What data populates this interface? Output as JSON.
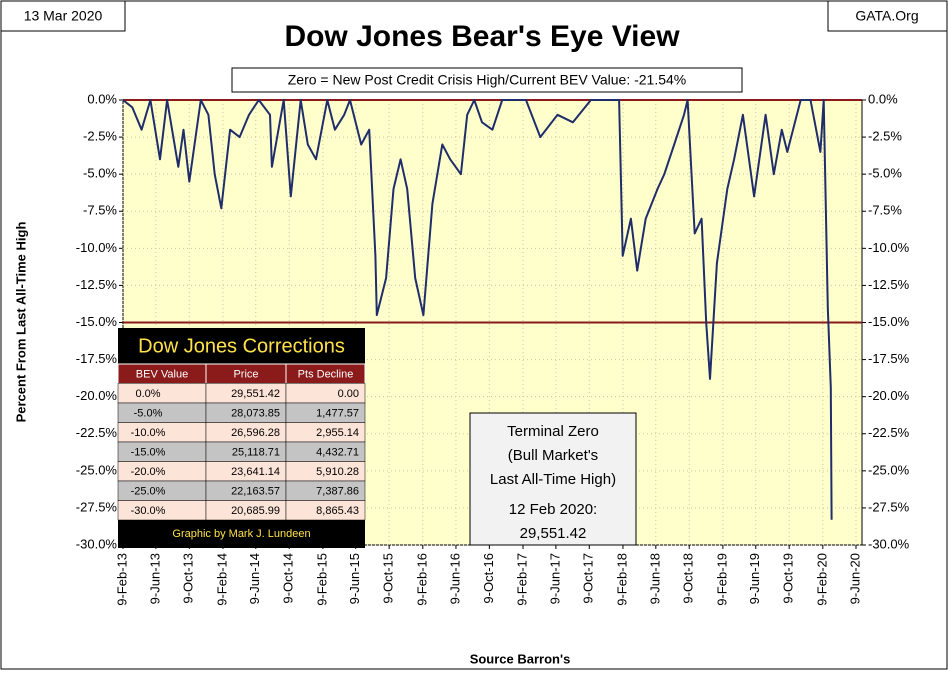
{
  "chart_data": {
    "type": "line",
    "title": "Dow Jones Bear's Eye View",
    "subtitle": "Zero = New Post Credit Crisis High/Current BEV Value:  -21.54%",
    "date_label": "13 Mar 2020",
    "source_site": "GATA.Org",
    "y_label": "Percent From Last All-Time High",
    "x_label": "Source Barron's",
    "x": [
      "2013-02-09",
      "2013-03-15",
      "2013-04-18",
      "2013-05-20",
      "2013-06-24",
      "2013-07-20",
      "2013-08-30",
      "2013-09-18",
      "2013-10-09",
      "2013-11-20",
      "2013-12-18",
      "2014-01-10",
      "2014-02-03",
      "2014-03-07",
      "2014-04-11",
      "2014-05-15",
      "2014-06-20",
      "2014-07-31",
      "2014-08-07",
      "2014-09-19",
      "2014-10-15",
      "2014-11-20",
      "2014-12-16",
      "2015-01-15",
      "2015-02-25",
      "2015-03-25",
      "2015-04-28",
      "2015-05-19",
      "2015-06-29",
      "2015-07-28",
      "2015-08-20",
      "2015-08-25",
      "2015-09-28",
      "2015-10-25",
      "2015-11-20",
      "2015-12-14",
      "2016-01-12",
      "2016-02-11",
      "2016-03-15",
      "2016-04-20",
      "2016-05-19",
      "2016-06-27",
      "2016-07-20",
      "2016-08-15",
      "2016-09-12",
      "2016-10-20",
      "2016-11-25",
      "2016-12-20",
      "2017-02-20",
      "2017-04-13",
      "2017-06-15",
      "2017-08-10",
      "2017-10-15",
      "2017-12-15",
      "2018-01-26",
      "2018-02-08",
      "2018-03-10",
      "2018-04-02",
      "2018-05-03",
      "2018-06-15",
      "2018-07-10",
      "2018-08-15",
      "2018-09-20",
      "2018-10-03",
      "2018-10-29",
      "2018-11-23",
      "2018-12-10",
      "2018-12-24",
      "2019-01-18",
      "2019-02-25",
      "2019-03-22",
      "2019-04-23",
      "2019-06-03",
      "2019-07-15",
      "2019-08-14",
      "2019-09-12",
      "2019-10-02",
      "2019-11-20",
      "2019-12-26",
      "2020-01-31",
      "2020-02-12",
      "2020-02-27",
      "2020-03-09",
      "2020-03-12"
    ],
    "series": [
      {
        "name": "Dow Jones BEV",
        "color": "#1f2d6b",
        "values": [
          0,
          -0.5,
          -2,
          0,
          -4,
          0,
          -4.5,
          -2,
          -5.5,
          0,
          -1,
          -5,
          -7.3,
          -2,
          -2.5,
          -1,
          0,
          -1,
          -4.5,
          0,
          -6.5,
          0,
          -3,
          -4,
          0,
          -2,
          -1,
          0,
          -3,
          -2,
          -10.5,
          -14.5,
          -12,
          -6,
          -4,
          -6,
          -12,
          -14.5,
          -7,
          -3,
          -4,
          -5,
          -1,
          0,
          -1.5,
          -2,
          0,
          0,
          0,
          -2.5,
          -1,
          -1.5,
          0,
          0,
          0,
          -10.5,
          -8,
          -11.5,
          -8,
          -6,
          -5,
          -3,
          -1,
          0,
          -9,
          -8,
          -15,
          -18.8,
          -11,
          -6,
          -4,
          -1,
          -6.5,
          -1,
          -5,
          -2,
          -3.5,
          0,
          0,
          -3.5,
          0,
          -14,
          -19.4,
          -28.3
        ]
      }
    ],
    "xlim": [
      "2013-02-09",
      "2020-07-01"
    ],
    "xticks": [
      {
        "value": "2013-02-09",
        "label": "9-Feb-13"
      },
      {
        "value": "2013-06-09",
        "label": "9-Jun-13"
      },
      {
        "value": "2013-10-09",
        "label": "9-Oct-13"
      },
      {
        "value": "2014-02-09",
        "label": "9-Feb-14"
      },
      {
        "value": "2014-06-09",
        "label": "9-Jun-14"
      },
      {
        "value": "2014-10-09",
        "label": "9-Oct-14"
      },
      {
        "value": "2015-02-09",
        "label": "9-Feb-15"
      },
      {
        "value": "2015-06-09",
        "label": "9-Jun-15"
      },
      {
        "value": "2015-10-09",
        "label": "9-Oct-15"
      },
      {
        "value": "2016-02-09",
        "label": "9-Feb-16"
      },
      {
        "value": "2016-06-09",
        "label": "9-Jun-16"
      },
      {
        "value": "2016-10-09",
        "label": "9-Oct-16"
      },
      {
        "value": "2017-02-09",
        "label": "9-Feb-17"
      },
      {
        "value": "2017-06-09",
        "label": "9-Jun-17"
      },
      {
        "value": "2017-10-09",
        "label": "9-Oct-17"
      },
      {
        "value": "2018-02-09",
        "label": "9-Feb-18"
      },
      {
        "value": "2018-06-09",
        "label": "9-Jun-18"
      },
      {
        "value": "2018-10-09",
        "label": "9-Oct-18"
      },
      {
        "value": "2019-02-09",
        "label": "9-Feb-19"
      },
      {
        "value": "2019-06-09",
        "label": "9-Jun-19"
      },
      {
        "value": "2019-10-09",
        "label": "9-Oct-19"
      },
      {
        "value": "2020-02-09",
        "label": "9-Feb-20"
      },
      {
        "value": "2020-06-09",
        "label": "9-Jun-20"
      }
    ],
    "ylim": [
      -30,
      0
    ],
    "yticks": [
      {
        "value": 0,
        "label": "0.0%"
      },
      {
        "value": -2.5,
        "label": "-2.5%"
      },
      {
        "value": -5,
        "label": "-5.0%"
      },
      {
        "value": -7.5,
        "label": "-7.5%"
      },
      {
        "value": -10,
        "label": "-10.0%"
      },
      {
        "value": -12.5,
        "label": "-12.5%"
      },
      {
        "value": -15,
        "label": "-15.0%"
      },
      {
        "value": -17.5,
        "label": "-17.5%"
      },
      {
        "value": -20,
        "label": "-20.0%"
      },
      {
        "value": -22.5,
        "label": "-22.5%"
      },
      {
        "value": -25,
        "label": "-25.0%"
      },
      {
        "value": -27.5,
        "label": "-27.5%"
      },
      {
        "value": -30,
        "label": "-30.0%"
      }
    ],
    "reference_lines": [
      0,
      -15
    ],
    "reference_color": "#8b1a1a",
    "background": "#ffffcc",
    "annotation": [
      "Terminal Zero",
      "(Bull Market's",
      "Last All-Time High)",
      "12 Feb 2020:",
      "29,551.42"
    ],
    "table": {
      "title": "Dow Jones Corrections",
      "columns": [
        "BEV Value",
        "Price",
        "Pts Decline"
      ],
      "rows": [
        [
          "0.0%",
          "29,551.42",
          "0.00"
        ],
        [
          "-5.0%",
          "28,073.85",
          "1,477.57"
        ],
        [
          "-10.0%",
          "26,596.28",
          "2,955.14"
        ],
        [
          "-15.0%",
          "25,118.71",
          "4,432.71"
        ],
        [
          "-20.0%",
          "23,641.14",
          "5,910.28"
        ],
        [
          "-25.0%",
          "22,163.57",
          "7,387.86"
        ],
        [
          "-30.0%",
          "20,685.99",
          "8,865.43"
        ]
      ],
      "credit": "Graphic by Mark J. Lundeen"
    }
  }
}
